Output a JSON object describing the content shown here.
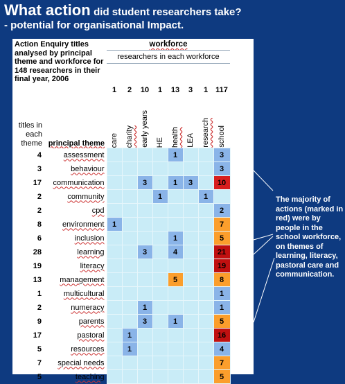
{
  "title": {
    "line1_big": "What action",
    "line1_small": "did student researchers take?",
    "line2": "- potential for organisational Impact."
  },
  "table": {
    "corner_text": "Action Enquiry titles analysed by principal theme and workforce for 148 researchers in their final year, 2006",
    "workforce_label": "workforce",
    "researchers_label": "researchers in each workforce",
    "titles_label": "titles in each theme",
    "theme_label": "principal theme",
    "columns": [
      {
        "name": "care",
        "count": "1"
      },
      {
        "name": "charity",
        "count": "2"
      },
      {
        "name": "early years",
        "count": "10"
      },
      {
        "name": "HE",
        "count": "1"
      },
      {
        "name": "health",
        "count": "13"
      },
      {
        "name": "LEA",
        "count": "3"
      },
      {
        "name": "research",
        "count": "1"
      },
      {
        "name": "school",
        "count": "117"
      }
    ],
    "rows": [
      {
        "count": "4",
        "theme": "assessment",
        "cells": [
          "",
          "",
          "",
          "",
          "1",
          "",
          "",
          "3"
        ],
        "colors": [
          "",
          "",
          "",
          "",
          "blue",
          "",
          "",
          "blue"
        ]
      },
      {
        "count": "3",
        "theme": "behaviour",
        "cells": [
          "",
          "",
          "",
          "",
          "",
          "",
          "",
          "3"
        ],
        "colors": [
          "",
          "",
          "",
          "",
          "",
          "",
          "",
          "blue"
        ]
      },
      {
        "count": "17",
        "theme": "communication",
        "cells": [
          "",
          "",
          "3",
          "",
          "1",
          "3",
          "",
          "10"
        ],
        "colors": [
          "",
          "",
          "blue",
          "",
          "blue",
          "blue",
          "",
          "red"
        ]
      },
      {
        "count": "2",
        "theme": "community",
        "cells": [
          "",
          "",
          "",
          "1",
          "",
          "",
          "1",
          ""
        ],
        "colors": [
          "",
          "",
          "",
          "blue",
          "",
          "",
          "blue",
          ""
        ]
      },
      {
        "count": "2",
        "theme": "cpd",
        "cells": [
          "",
          "",
          "",
          "",
          "",
          "",
          "",
          "2"
        ],
        "colors": [
          "",
          "",
          "",
          "",
          "",
          "",
          "",
          "blue"
        ]
      },
      {
        "count": "8",
        "theme": "environment",
        "cells": [
          "1",
          "",
          "",
          "",
          "",
          "",
          "",
          "7"
        ],
        "colors": [
          "blue",
          "",
          "",
          "",
          "",
          "",
          "",
          "orange"
        ]
      },
      {
        "count": "6",
        "theme": "inclusion",
        "cells": [
          "",
          "",
          "",
          "",
          "1",
          "",
          "",
          "5"
        ],
        "colors": [
          "",
          "",
          "",
          "",
          "blue",
          "",
          "",
          "orange"
        ]
      },
      {
        "count": "28",
        "theme": "learning",
        "cells": [
          "",
          "",
          "3",
          "",
          "4",
          "",
          "",
          "21"
        ],
        "colors": [
          "",
          "",
          "blue",
          "",
          "blue",
          "",
          "",
          "dark"
        ]
      },
      {
        "count": "19",
        "theme": "literacy",
        "cells": [
          "",
          "",
          "",
          "",
          "",
          "",
          "",
          "19"
        ],
        "colors": [
          "",
          "",
          "",
          "",
          "",
          "",
          "",
          "dark"
        ]
      },
      {
        "count": "13",
        "theme": "management",
        "cells": [
          "",
          "",
          "",
          "",
          "5",
          "",
          "",
          "8"
        ],
        "colors": [
          "",
          "",
          "",
          "",
          "orange",
          "",
          "",
          "orange"
        ]
      },
      {
        "count": "1",
        "theme": "multicultural",
        "cells": [
          "",
          "",
          "",
          "",
          "",
          "",
          "",
          "1"
        ],
        "colors": [
          "",
          "",
          "",
          "",
          "",
          "",
          "",
          "blue"
        ]
      },
      {
        "count": "2",
        "theme": "numeracy",
        "cells": [
          "",
          "",
          "1",
          "",
          "",
          "",
          "",
          "1"
        ],
        "colors": [
          "",
          "",
          "blue",
          "",
          "",
          "",
          "",
          "blue"
        ]
      },
      {
        "count": "9",
        "theme": "parents",
        "cells": [
          "",
          "",
          "3",
          "",
          "1",
          "",
          "",
          "5"
        ],
        "colors": [
          "",
          "",
          "blue",
          "",
          "blue",
          "",
          "",
          "orange"
        ]
      },
      {
        "count": "17",
        "theme": "pastoral",
        "cells": [
          "",
          "1",
          "",
          "",
          "",
          "",
          "",
          "16"
        ],
        "colors": [
          "",
          "blue",
          "",
          "",
          "",
          "",
          "",
          "dark"
        ]
      },
      {
        "count": "5",
        "theme": "resources",
        "cells": [
          "",
          "1",
          "",
          "",
          "",
          "",
          "",
          "4"
        ],
        "colors": [
          "",
          "blue",
          "",
          "",
          "",
          "",
          "",
          "blue"
        ]
      },
      {
        "count": "7",
        "theme": "special needs",
        "cells": [
          "",
          "",
          "",
          "",
          "",
          "",
          "",
          "7"
        ],
        "colors": [
          "",
          "",
          "",
          "",
          "",
          "",
          "",
          "orange"
        ]
      },
      {
        "count": "5",
        "theme": "teaching",
        "cells": [
          "",
          "",
          "",
          "",
          "",
          "",
          "",
          "5"
        ],
        "colors": [
          "",
          "",
          "",
          "",
          "",
          "",
          "",
          "orange"
        ]
      }
    ]
  },
  "note": "The majority of actions (marked in red) were by people in the school workforce, on themes of learning, literacy, pastoral care and communication."
}
